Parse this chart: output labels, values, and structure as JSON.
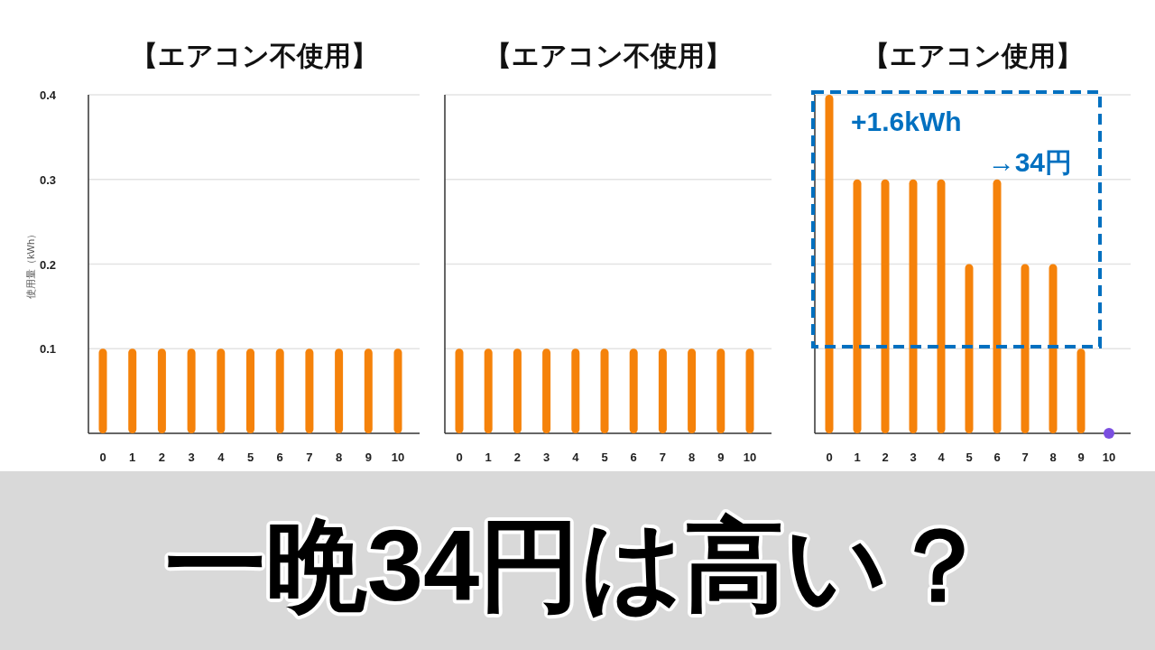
{
  "chart_data": [
    {
      "type": "bar",
      "title": "【エアコン不使用】",
      "ylabel": "使用量（kWh）",
      "categories": [
        "0",
        "1",
        "2",
        "3",
        "4",
        "5",
        "6",
        "7",
        "8",
        "9",
        "10"
      ],
      "series": [
        {
          "color": "#f5820a",
          "values": [
            0.1,
            0.1,
            0.1,
            0.1,
            0.1,
            0.1,
            0.1,
            0.1,
            0.1,
            0.1,
            0.1
          ]
        }
      ],
      "ylim": [
        0,
        0.4
      ],
      "yticks": [
        0.1,
        0.2,
        0.3,
        0.4
      ],
      "grid": "y"
    },
    {
      "type": "bar",
      "title": "【エアコン不使用】",
      "categories": [
        "0",
        "1",
        "2",
        "3",
        "4",
        "5",
        "6",
        "7",
        "8",
        "9",
        "10"
      ],
      "series": [
        {
          "color": "#f5820a",
          "values": [
            0.1,
            0.1,
            0.1,
            0.1,
            0.1,
            0.1,
            0.1,
            0.1,
            0.1,
            0.1,
            0.1
          ]
        }
      ],
      "ylim": [
        0,
        0.4
      ],
      "yticks": [
        0.1,
        0.2,
        0.3,
        0.4
      ],
      "grid": "y",
      "tick_labels": "x"
    },
    {
      "type": "bar",
      "title": "【エアコン使用】",
      "categories": [
        "0",
        "1",
        "2",
        "3",
        "4",
        "5",
        "6",
        "7",
        "8",
        "9",
        "10"
      ],
      "series": [
        {
          "color": "#f5820a",
          "values": [
            0.4,
            0.3,
            0.3,
            0.3,
            0.3,
            0.2,
            0.3,
            0.2,
            0.2,
            0.1,
            0
          ]
        },
        {
          "type": "scatter",
          "color": "#7b4fe0",
          "x": [
            "10"
          ],
          "values": [
            0
          ]
        }
      ],
      "ylim": [
        0,
        0.4
      ],
      "yticks": [
        0.1,
        0.2,
        0.3,
        0.4
      ],
      "grid": "y",
      "tick_labels": "x",
      "annotations": [
        "+1.6kWh\n→34円"
      ]
    },
    {
      "type": "other",
      "annotations": [
        "一晩34円は高い？"
      ]
    }
  ]
}
